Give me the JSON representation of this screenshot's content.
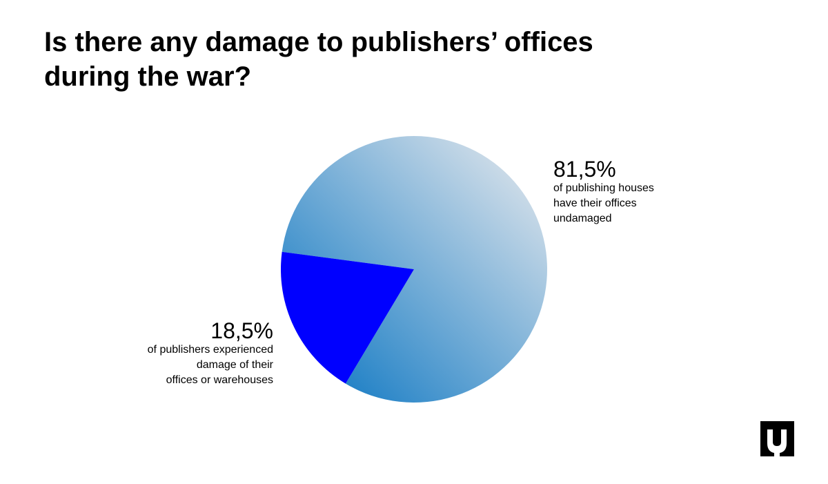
{
  "chart_data": {
    "type": "pie",
    "title": "Is there any damage to publishers’ offices during the war?",
    "categories": [
      [
        "of publishing houses",
        "have their offices",
        "undamaged"
      ],
      [
        "of publishers experienced",
        "damage of their",
        "offices or warehouses"
      ]
    ],
    "values": [
      81.5,
      18.5
    ],
    "value_labels": [
      "81,5%",
      "18,5%"
    ],
    "colors": [
      "#0070c0",
      "#0000ff"
    ]
  }
}
